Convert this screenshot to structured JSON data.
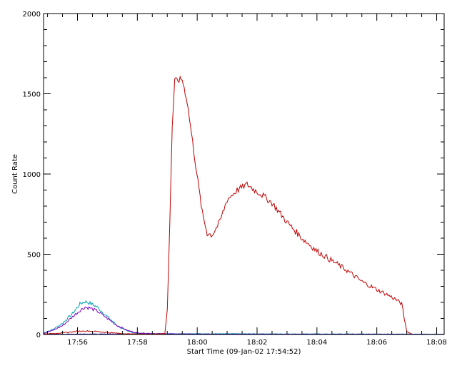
{
  "chart_data": {
    "type": "line",
    "xlabel": "Start Time (09-Jan-02 17:54:52)",
    "ylabel": "Count Rate",
    "x_unit": "time (HH:MM, 09-Jan-02)",
    "xlim": [
      "17:54:52",
      "18:08:15"
    ],
    "ylim": [
      0,
      2000
    ],
    "x_ticks": [
      "17:56",
      "17:58",
      "18:00",
      "18:02",
      "18:04",
      "18:06",
      "18:08"
    ],
    "y_ticks": [
      0,
      500,
      1000,
      1500,
      2000
    ],
    "grid": false,
    "legend": "none",
    "series": [
      {
        "color": "#00a0b0",
        "points": [
          [
            "17:54:52",
            10
          ],
          [
            "17:55:10",
            30
          ],
          [
            "17:55:30",
            70
          ],
          [
            "17:55:50",
            130
          ],
          [
            "17:56:05",
            190
          ],
          [
            "17:56:15",
            205
          ],
          [
            "17:56:25",
            195
          ],
          [
            "17:56:40",
            170
          ],
          [
            "17:57:00",
            110
          ],
          [
            "17:57:20",
            55
          ],
          [
            "17:57:40",
            20
          ],
          [
            "17:58:00",
            8
          ],
          [
            "17:58:30",
            5
          ],
          [
            "18:00:00",
            4
          ],
          [
            "18:04:00",
            3
          ],
          [
            "18:08:15",
            2
          ]
        ]
      },
      {
        "color": "#8000c0",
        "points": [
          [
            "17:54:52",
            8
          ],
          [
            "17:55:10",
            25
          ],
          [
            "17:55:30",
            55
          ],
          [
            "17:55:50",
            110
          ],
          [
            "17:56:05",
            150
          ],
          [
            "17:56:15",
            170
          ],
          [
            "17:56:25",
            165
          ],
          [
            "17:56:40",
            145
          ],
          [
            "17:57:00",
            100
          ],
          [
            "17:57:20",
            55
          ],
          [
            "17:57:40",
            25
          ],
          [
            "17:58:00",
            10
          ],
          [
            "17:58:30",
            6
          ],
          [
            "17:59:00",
            4
          ],
          [
            "18:00:00",
            2
          ],
          [
            "18:08:15",
            1
          ]
        ]
      },
      {
        "color": "#0000c0",
        "points": [
          [
            "17:54:52",
            2
          ],
          [
            "17:58:00",
            3
          ],
          [
            "18:00:00",
            3
          ],
          [
            "18:03:00",
            2
          ],
          [
            "18:06:00",
            2
          ],
          [
            "18:08:15",
            1
          ]
        ]
      },
      {
        "color": "#c00000",
        "points": [
          [
            "17:54:52",
            3
          ],
          [
            "17:55:30",
            10
          ],
          [
            "17:56:00",
            20
          ],
          [
            "17:56:20",
            22
          ],
          [
            "17:56:40",
            18
          ],
          [
            "17:57:10",
            10
          ],
          [
            "17:57:40",
            4
          ],
          [
            "17:58:30",
            3
          ],
          [
            "17:58:55",
            5
          ],
          [
            "17:59:00",
            150
          ],
          [
            "17:59:05",
            700
          ],
          [
            "17:59:10",
            1300
          ],
          [
            "17:59:15",
            1580
          ],
          [
            "17:59:30",
            1590
          ],
          [
            "17:59:40",
            1450
          ],
          [
            "17:59:55",
            1100
          ],
          [
            "18:00:10",
            760
          ],
          [
            "18:00:20",
            630
          ],
          [
            "18:00:30",
            620
          ],
          [
            "18:00:45",
            700
          ],
          [
            "18:01:00",
            840
          ],
          [
            "18:01:20",
            900
          ],
          [
            "18:01:40",
            935
          ],
          [
            "18:01:55",
            900
          ],
          [
            "18:02:10",
            870
          ],
          [
            "18:02:30",
            820
          ],
          [
            "18:03:00",
            700
          ],
          [
            "18:03:30",
            600
          ],
          [
            "18:04:00",
            520
          ],
          [
            "18:04:30",
            460
          ],
          [
            "18:05:00",
            400
          ],
          [
            "18:05:30",
            330
          ],
          [
            "18:06:00",
            280
          ],
          [
            "18:06:20",
            250
          ],
          [
            "18:06:40",
            215
          ],
          [
            "18:06:50",
            190
          ],
          [
            "18:06:55",
            100
          ],
          [
            "18:07:00",
            20
          ],
          [
            "18:07:10",
            3
          ]
        ]
      }
    ]
  }
}
